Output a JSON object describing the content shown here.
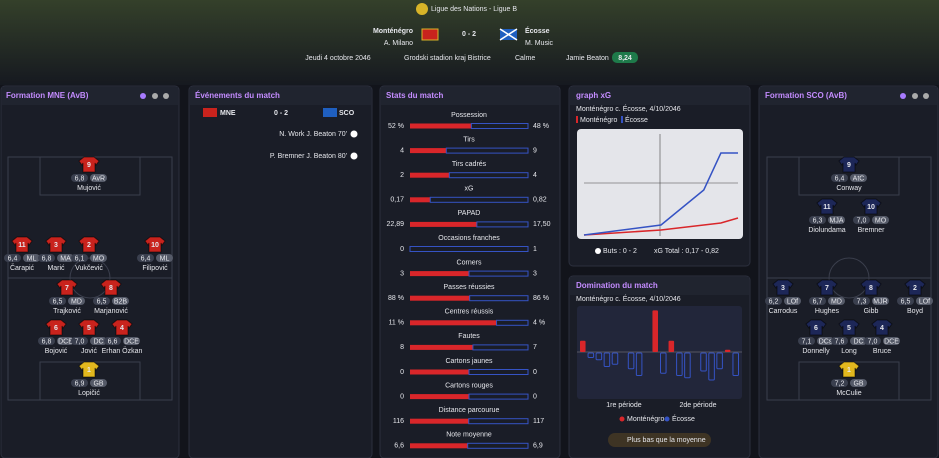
{
  "header": {
    "competition": "Ligue des Nations - Ligue B",
    "home_team": "Monténégro",
    "away_team": "Écosse",
    "score": "0 - 2",
    "home_coach": "A. Milano",
    "away_coach": "M. Music",
    "date": "Jeudi 4 octobre 2046",
    "stadium": "Grodski stadion kraj Bistrice",
    "weather": "Calme",
    "player_of_match": "Jamie Beaton",
    "player_of_match_rating": "8,24"
  },
  "home_formation": {
    "title": "Formation MNE (AvB)",
    "kit_color": "#c9231d",
    "gk_color": "#e2b81e",
    "players": [
      {
        "number": "9",
        "rating": "6,8",
        "position": "AvR",
        "name": "Mujović"
      },
      {
        "number": "11",
        "rating": "6,4",
        "position": "ML",
        "name": "Čarapić"
      },
      {
        "number": "3",
        "rating": "6,8",
        "position": "MA",
        "name": "Marić"
      },
      {
        "number": "2",
        "rating": "6,1",
        "position": "MO",
        "name": "Vukčević"
      },
      {
        "number": "10",
        "rating": "6,4",
        "position": "ML",
        "name": "Filipović"
      },
      {
        "number": "7",
        "rating": "6,5",
        "position": "MD",
        "name": "Trajković"
      },
      {
        "number": "8",
        "rating": "6,5",
        "position": "B2B",
        "name": "Marjanović"
      },
      {
        "number": "6",
        "rating": "6,8",
        "position": "DCE",
        "name": "Bojović"
      },
      {
        "number": "5",
        "rating": "7,0",
        "position": "DC",
        "name": "Jović"
      },
      {
        "number": "4",
        "rating": "6,6",
        "position": "DCE",
        "name": "Erhan Özkan"
      },
      {
        "number": "1",
        "rating": "6,9",
        "position": "GB",
        "name": "Lopičić"
      }
    ]
  },
  "away_formation": {
    "title": "Formation SCO (AvB)",
    "kit_color": "#1d2758",
    "gk_color": "#e2b81e",
    "players": [
      {
        "number": "9",
        "rating": "6,4",
        "position": "AtC",
        "name": "Conway"
      },
      {
        "number": "11",
        "rating": "6,3",
        "position": "MJA",
        "name": "Diolundama"
      },
      {
        "number": "10",
        "rating": "7,0",
        "position": "MO",
        "name": "Bremner"
      },
      {
        "number": "3",
        "rating": "6,2",
        "position": "LOf",
        "name": "Carrodus"
      },
      {
        "number": "7",
        "rating": "6,7",
        "position": "MD",
        "name": "Hughes"
      },
      {
        "number": "8",
        "rating": "7,3",
        "position": "MJR",
        "name": "Gibb"
      },
      {
        "number": "2",
        "rating": "6,5",
        "position": "LOf",
        "name": "Boyd"
      },
      {
        "number": "6",
        "rating": "7,1",
        "position": "DCs",
        "name": "Donnelly"
      },
      {
        "number": "5",
        "rating": "7,6",
        "position": "DC",
        "name": "Long"
      },
      {
        "number": "4",
        "rating": "7,0",
        "position": "DCE",
        "name": "Bruce"
      },
      {
        "number": "1",
        "rating": "7,2",
        "position": "GB",
        "name": "McCulie"
      }
    ]
  },
  "events": {
    "title": "Événements du match",
    "home": "MNE",
    "score": "0 - 2",
    "away": "SCO",
    "items": [
      "N. Work J. Beaton 70'",
      "P. Bremner J. Beaton 80'"
    ]
  },
  "stats": {
    "title": "Stats du match",
    "home_color": "#d9262a",
    "away_color": "#3553c4",
    "rows": [
      {
        "label": "Possession",
        "home": {
          "value": 52,
          "label": "52 %"
        },
        "away": {
          "value": 48,
          "label": "48 %"
        }
      },
      {
        "label": "Tirs",
        "home": 4,
        "away": 9
      },
      {
        "label": "Tirs cadrés",
        "home": 2,
        "away": 4
      },
      {
        "label": "xG",
        "home": {
          "value": 0.17,
          "label": "0,17"
        },
        "away": {
          "value": 0.82,
          "label": "0,82"
        }
      },
      {
        "label": "PAPAD",
        "home": {
          "value": 22.89,
          "label": "22,89"
        },
        "away": {
          "value": 17.5,
          "label": "17,50"
        }
      },
      {
        "label": "Occasions franches",
        "home": 0,
        "away": 1
      },
      {
        "label": "Corners",
        "home": 3,
        "away": 3
      },
      {
        "label": "Passes réussies",
        "home": {
          "value": 88,
          "label": "88 %"
        },
        "away": {
          "value": 86,
          "label": "86 %"
        }
      },
      {
        "label": "Centres réussis",
        "home": {
          "value": 11,
          "label": "11 %"
        },
        "away": {
          "value": 4,
          "label": "4 %"
        }
      },
      {
        "label": "Fautes",
        "home": 8,
        "away": 7
      },
      {
        "label": "Cartons jaunes",
        "home": 0,
        "away": 0
      },
      {
        "label": "Cartons rouges",
        "home": 0,
        "away": 0
      },
      {
        "label": "Distance parcourue",
        "home": 116,
        "away": 117
      },
      {
        "label": "Note moyenne",
        "home": {
          "value": 6.6,
          "label": "6,6"
        },
        "away": {
          "value": 6.9,
          "label": "6,9"
        }
      }
    ]
  },
  "xg_graph": {
    "type": "line",
    "title": "graph xG",
    "subtitle": "Monténégro c. Écosse, 4/10/2046",
    "x": [
      0,
      45,
      70,
      80,
      90
    ],
    "xlim": [
      0,
      90
    ],
    "ylim": [
      0,
      1
    ],
    "series": [
      {
        "name": "Monténégro",
        "color": "#d9262a",
        "values": [
          0,
          0.05,
          0.1,
          0.12,
          0.17
        ]
      },
      {
        "name": "Écosse",
        "color": "#3553c4",
        "values": [
          0,
          0.1,
          0.45,
          0.82,
          0.82
        ]
      }
    ],
    "goals": "Buts : 0 - 2",
    "xg_total": "xG Total : 0,17 - 0,82"
  },
  "domination": {
    "type": "bar",
    "title": "Domination du match",
    "subtitle": "Monténégro c. Écosse, 4/10/2046",
    "ylim": [
      -40,
      40
    ],
    "period_labels": [
      "1re période",
      "2de période"
    ],
    "series": [
      {
        "name": "Monténégro",
        "color": "#d9262a",
        "values": [
          10,
          0,
          0,
          0,
          0,
          0,
          0,
          0,
          0,
          37,
          0,
          10,
          0,
          0,
          0,
          0,
          0,
          0,
          2,
          0
        ]
      },
      {
        "name": "Écosse",
        "color": "#3553c4",
        "values": [
          0,
          4,
          6,
          12,
          10,
          0,
          14,
          20,
          0,
          0,
          18,
          0,
          20,
          22,
          0,
          16,
          24,
          14,
          0,
          20
        ]
      }
    ],
    "note": "Plus bas que la moyenne"
  }
}
